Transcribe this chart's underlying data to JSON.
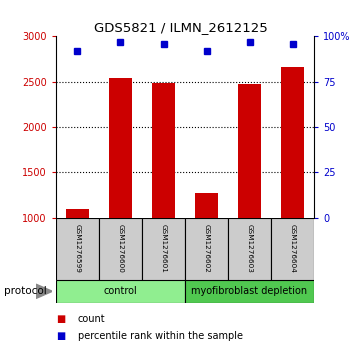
{
  "title": "GDS5821 / ILMN_2612125",
  "samples": [
    "GSM1276599",
    "GSM1276600",
    "GSM1276601",
    "GSM1276602",
    "GSM1276603",
    "GSM1276604"
  ],
  "counts": [
    1100,
    2540,
    2490,
    1270,
    2470,
    2660
  ],
  "percentile_ranks": [
    92,
    97,
    96,
    92,
    97,
    96
  ],
  "ylim_left": [
    1000,
    3000
  ],
  "ylim_right": [
    0,
    100
  ],
  "yticks_left": [
    1000,
    1500,
    2000,
    2500,
    3000
  ],
  "ytick_labels_left": [
    "1000",
    "1500",
    "2000",
    "2500",
    "3000"
  ],
  "yticks_right": [
    0,
    25,
    50,
    75,
    100
  ],
  "ytick_labels_right": [
    "0",
    "25",
    "50",
    "75",
    "100%"
  ],
  "groups": [
    {
      "label": "control",
      "samples": [
        0,
        1,
        2
      ],
      "color": "#90EE90"
    },
    {
      "label": "myofibroblast depletion",
      "samples": [
        3,
        4,
        5
      ],
      "color": "#50C850"
    }
  ],
  "bar_color": "#CC0000",
  "dot_color": "#0000CC",
  "grid_color": "#000000",
  "left_axis_color": "#CC0000",
  "right_axis_color": "#0000CC",
  "sample_box_color": "#CCCCCC",
  "legend_count_color": "#CC0000",
  "legend_pct_color": "#0000CC"
}
